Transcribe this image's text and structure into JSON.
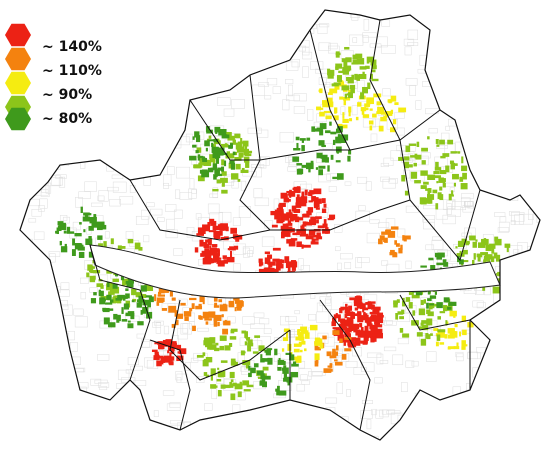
{
  "legend": {
    "items": [
      {
        "label": "~ 140%",
        "color": "#ec2215"
      },
      {
        "label": "~ 110%",
        "color": "#f4820f"
      },
      {
        "label": "~ 90%",
        "color": "#f5ec11"
      },
      {
        "label": "~ 80%",
        "color": "#8cc51a"
      },
      {
        "label": "",
        "color": "#3f9a1c"
      }
    ]
  }
}
